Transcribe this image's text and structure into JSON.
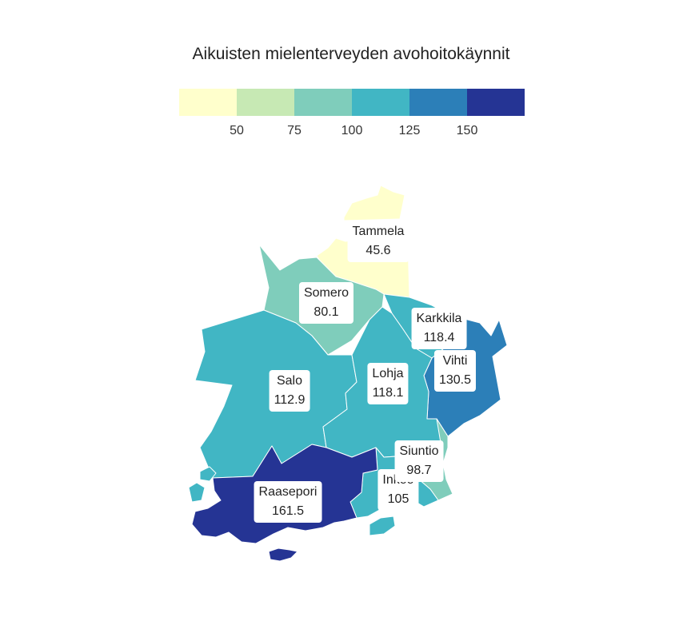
{
  "title": "Aikuisten mielenterveyden avohoitokäynnit",
  "legend": {
    "colors": [
      "#ffffcc",
      "#c7e9b4",
      "#7fcdbb",
      "#41b6c4",
      "#2c7fb8",
      "#253494"
    ],
    "ticks": [
      "50",
      "75",
      "100",
      "125",
      "150"
    ]
  },
  "municipalities": [
    {
      "name": "Tammela",
      "value": "45.6",
      "color": "#ffffcc"
    },
    {
      "name": "Somero",
      "value": "80.1",
      "color": "#7fcdbb"
    },
    {
      "name": "Karkkila",
      "value": "118.4",
      "color": "#41b6c4"
    },
    {
      "name": "Vihti",
      "value": "130.5",
      "color": "#2c7fb8"
    },
    {
      "name": "Salo",
      "value": "112.9",
      "color": "#41b6c4"
    },
    {
      "name": "Lohja",
      "value": "118.1",
      "color": "#41b6c4"
    },
    {
      "name": "Siuntio",
      "value": "98.7",
      "color": "#7fcdbb"
    },
    {
      "name": "Inkoo",
      "value": "105",
      "color": "#41b6c4"
    },
    {
      "name": "Raasepori",
      "value": "161.5",
      "color": "#253494"
    }
  ]
}
